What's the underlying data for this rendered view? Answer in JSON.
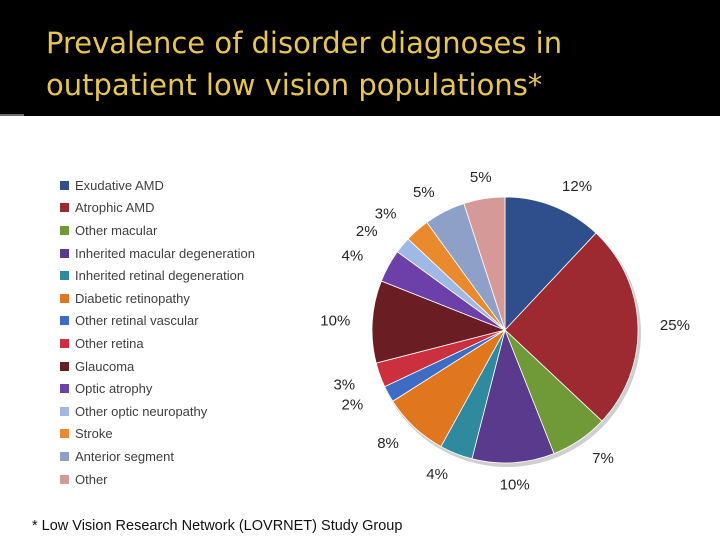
{
  "slide": {
    "title_lines": [
      "Prevalence of disorder diagnoses in",
      "outpatient low vision populations*"
    ],
    "footnote": "* Low Vision Research Network (LOVRNET) Study Group"
  },
  "chart_data": {
    "type": "pie",
    "title": "",
    "legend_position": "left",
    "start": "12 o'clock, clockwise",
    "slices": [
      {
        "name": "Exudative AMD",
        "value": 12,
        "label": "12%",
        "color": "#2e4f8c"
      },
      {
        "name": "Atrophic AMD",
        "value": 25,
        "label": "25%",
        "color": "#9c2a30"
      },
      {
        "name": "Other macular",
        "value": 7,
        "label": "7%",
        "color": "#6f9a37"
      },
      {
        "name": "Inherited macular degeneration",
        "value": 10,
        "label": "10%",
        "color": "#5a3a8c"
      },
      {
        "name": "Inherited retinal degeneration",
        "value": 4,
        "label": "4%",
        "color": "#2f8aa0"
      },
      {
        "name": "Diabetic retinopathy",
        "value": 8,
        "label": "8%",
        "color": "#e0761e"
      },
      {
        "name": "Other retinal vascular",
        "value": 2,
        "label": "2%",
        "color": "#3d6cc4"
      },
      {
        "name": "Other retina",
        "value": 3,
        "label": "3%",
        "color": "#cc2f3e"
      },
      {
        "name": "Glaucoma",
        "value": 10,
        "label": "10%",
        "color": "#6a1e23"
      },
      {
        "name": "Optic atrophy",
        "value": 4,
        "label": "4%",
        "color": "#6c40a8"
      },
      {
        "name": "Other optic neuropathy",
        "value": 2,
        "label": "2%",
        "color": "#9fb8e6"
      },
      {
        "name": "Stroke",
        "value": 3,
        "label": "3%",
        "color": "#ea8a2f"
      },
      {
        "name": "Anterior segment",
        "value": 5,
        "label": "5%",
        "color": "#8fa0c8"
      },
      {
        "name": "Other",
        "value": 5,
        "label": "5%",
        "color": "#d59a98"
      }
    ]
  }
}
